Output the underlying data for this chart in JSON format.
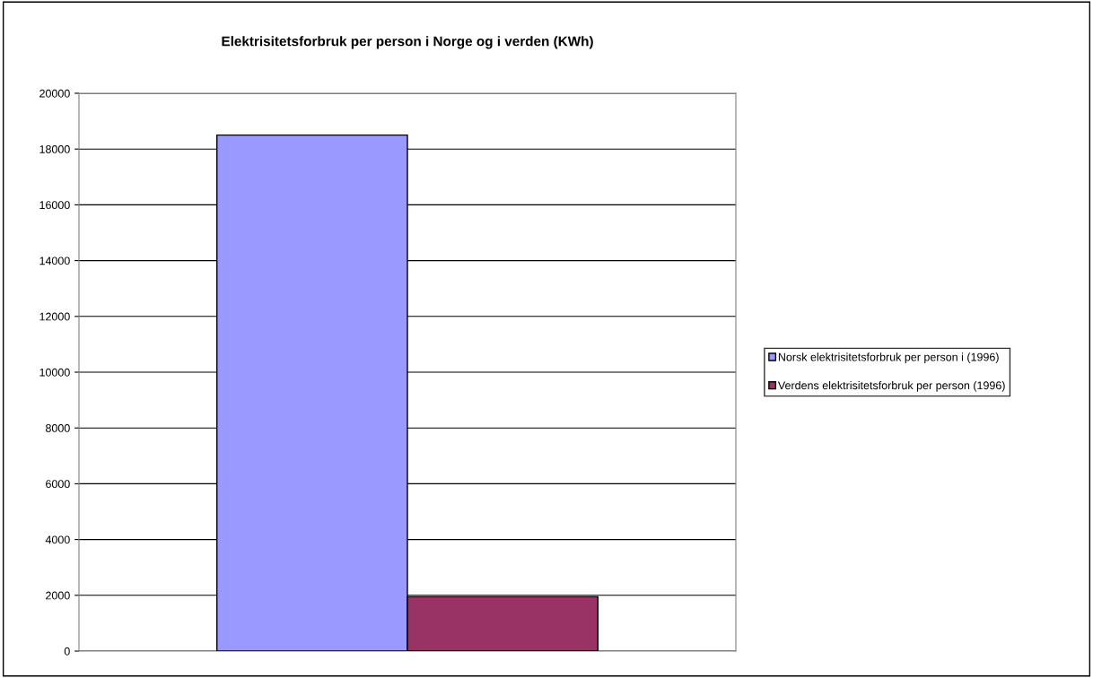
{
  "chart_data": {
    "type": "bar",
    "title": "Elektrisitetsforbruk per person i Norge og i verden (KWh)",
    "categories": [
      null
    ],
    "series": [
      {
        "name": "Norsk elektrisitetsforbruk per person i (1996)",
        "color": "#9999ff",
        "values": [
          18500
        ]
      },
      {
        "name": "Verdens elektrisitetsforbruk per person (1996)",
        "color": "#993366",
        "values": [
          1950
        ]
      }
    ],
    "ylim": [
      0,
      20000
    ],
    "yticks": [
      0,
      2000,
      4000,
      6000,
      8000,
      10000,
      12000,
      14000,
      16000,
      18000,
      20000
    ],
    "grid": "y",
    "legend": "right"
  }
}
